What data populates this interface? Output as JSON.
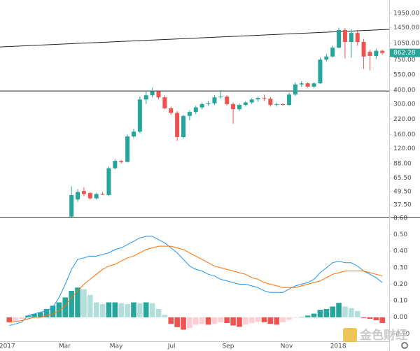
{
  "chart_data": [
    {
      "type": "candlestick",
      "x": [
        0,
        1,
        2,
        3,
        4,
        5,
        6,
        7,
        8,
        9,
        10,
        11,
        12,
        13,
        14,
        15,
        16,
        17,
        18,
        19,
        20,
        21,
        22,
        23,
        24,
        25,
        26,
        27,
        28,
        29,
        30,
        31,
        32,
        33,
        34,
        35,
        36,
        37,
        38,
        39,
        40,
        41,
        42,
        43,
        44,
        45,
        46,
        47,
        48,
        49,
        50,
        51,
        52,
        53,
        54,
        55,
        56,
        57,
        58,
        59,
        60
      ],
      "open": [
        null,
        null,
        null,
        null,
        null,
        null,
        null,
        null,
        null,
        null,
        29.5,
        42,
        50,
        48,
        43,
        47,
        46,
        80,
        93,
        91,
        154,
        170,
        330,
        360,
        390,
        345,
        275,
        250,
        152,
        235,
        255,
        280,
        300,
        305,
        345,
        350,
        300,
        270,
        295,
        310,
        330,
        340,
        335,
        295,
        300,
        295,
        365,
        450,
        460,
        430,
        460,
        750,
        800,
        960,
        1380,
        1080,
        1300,
        1080,
        880,
        810,
        900
      ],
      "high": [
        null,
        null,
        null,
        null,
        null,
        null,
        null,
        null,
        null,
        null,
        55,
        52,
        54,
        49,
        48,
        49,
        83,
        96,
        95,
        160,
        180,
        350,
        395,
        420,
        400,
        360,
        285,
        260,
        240,
        265,
        290,
        310,
        320,
        360,
        400,
        360,
        310,
        305,
        320,
        340,
        350,
        365,
        345,
        310,
        305,
        380,
        470,
        480,
        470,
        470,
        780,
        840,
        1000,
        1450,
        1440,
        1400,
        1350,
        1150,
        920,
        940,
        920
      ],
      "low": [
        null,
        null,
        null,
        null,
        null,
        null,
        null,
        null,
        null,
        null,
        29,
        40,
        45,
        42,
        42,
        46,
        45,
        78,
        88,
        90,
        150,
        165,
        300,
        345,
        330,
        270,
        240,
        140,
        148,
        215,
        245,
        270,
        290,
        295,
        335,
        290,
        200,
        260,
        285,
        300,
        315,
        320,
        285,
        285,
        290,
        290,
        355,
        430,
        420,
        420,
        455,
        720,
        780,
        950,
        770,
        780,
        1000,
        620,
        600,
        760,
        830
      ],
      "close": [
        null,
        null,
        null,
        null,
        null,
        null,
        null,
        null,
        null,
        null,
        46,
        49,
        47,
        43,
        47,
        46.5,
        80,
        93,
        91,
        154,
        170,
        330,
        360,
        390,
        345,
        275,
        250,
        152,
        235,
        255,
        280,
        300,
        305,
        345,
        350,
        300,
        270,
        295,
        310,
        330,
        340,
        335,
        295,
        300,
        295,
        365,
        450,
        460,
        430,
        460,
        750,
        800,
        960,
        1380,
        1080,
        1300,
        1080,
        800,
        810,
        900,
        862.28
      ],
      "up_color": "#26a69a",
      "down_color": "#ef5350",
      "xlim": [
        -1.5,
        61.1
      ],
      "ylim": [
        29,
        2564
      ],
      "log_scale": true,
      "yticks": [
        {
          "value": 37.5,
          "label": "37.50"
        },
        {
          "value": 49.5,
          "label": "49.50"
        },
        {
          "value": 65.5,
          "label": "65.50"
        },
        {
          "value": 88,
          "label": "88.00"
        },
        {
          "value": 120,
          "label": "120.00"
        },
        {
          "value": 160,
          "label": "160.00"
        },
        {
          "value": 220,
          "label": "220.00"
        },
        {
          "value": 300,
          "label": "300.00"
        },
        {
          "value": 400,
          "label": "400.00"
        },
        {
          "value": 550,
          "label": "550.00"
        },
        {
          "value": 750,
          "label": "750.00"
        },
        {
          "value": 1050,
          "label": "1050.00"
        },
        {
          "value": 1450,
          "label": "1450.00"
        },
        {
          "value": 1950,
          "label": "1950.00"
        }
      ],
      "trendlines": [
        {
          "x": [
            -1.5,
            61.1
          ],
          "y": [
            975,
            1400
          ]
        },
        {
          "x": [
            -1.5,
            61.1
          ],
          "y": [
            393,
            393
          ]
        }
      ],
      "trendline_color": "#222222"
    },
    {
      "type": "macd",
      "x": [
        0,
        1,
        2,
        3,
        4,
        5,
        6,
        7,
        8,
        9,
        10,
        11,
        12,
        13,
        14,
        15,
        16,
        17,
        18,
        19,
        20,
        21,
        22,
        23,
        24,
        25,
        26,
        27,
        28,
        29,
        30,
        31,
        32,
        33,
        34,
        35,
        36,
        37,
        38,
        39,
        40,
        41,
        42,
        43,
        44,
        45,
        46,
        47,
        48,
        49,
        50,
        51,
        52,
        53,
        54,
        55,
        56,
        57,
        58,
        59,
        60
      ],
      "xlim": [
        -1.5,
        61.1
      ],
      "xticks": [
        {
          "value": -0.34,
          "label": "2017"
        },
        {
          "value": 8.9,
          "label": "Mar"
        },
        {
          "value": 17.2,
          "label": "May"
        },
        {
          "value": 26.1,
          "label": "Jul"
        },
        {
          "value": 35.2,
          "label": "Sep"
        },
        {
          "value": 44.6,
          "label": "Nov"
        },
        {
          "value": 52.9,
          "label": "2018"
        }
      ],
      "ylim": [
        -0.145,
        0.6
      ],
      "yticks": [
        {
          "value": -0.1,
          "label": "-0.10"
        },
        {
          "value": 0,
          "label": "0.00"
        },
        {
          "value": 0.1,
          "label": "0.10"
        },
        {
          "value": 0.2,
          "label": "0.20"
        },
        {
          "value": 0.3,
          "label": "0.30"
        },
        {
          "value": 0.4,
          "label": "0.40"
        },
        {
          "value": 0.5,
          "label": "0.50"
        },
        {
          "value": 0.6,
          "label": "0.60"
        }
      ],
      "histogram": {
        "values": [
          -0.03,
          -0.02,
          -0.01,
          0.01,
          0.02,
          0.03,
          0.05,
          0.07,
          0.09,
          0.12,
          0.16,
          0.18,
          0.17,
          0.135,
          0.09,
          0.08,
          0.09,
          0.09,
          0.085,
          0.08,
          0.09,
          0.085,
          0.09,
          0.085,
          0.05,
          0.015,
          -0.04,
          -0.06,
          -0.075,
          -0.065,
          -0.045,
          -0.04,
          -0.045,
          -0.04,
          -0.03,
          -0.035,
          -0.05,
          -0.058,
          -0.045,
          -0.035,
          -0.028,
          -0.03,
          -0.04,
          -0.045,
          -0.03,
          -0.015,
          -0.003,
          0.002,
          0.01,
          0.022,
          0.045,
          0.05,
          0.065,
          0.087,
          0.065,
          0.055,
          0.038,
          -0.005,
          -0.01,
          -0.018,
          -0.035
        ],
        "colors": {
          "rising_positive": "#26a69a",
          "falling_positive": "#b2dfdb",
          "falling_negative": "#ef5350",
          "rising_negative": "#ffcdd2"
        }
      },
      "series": [
        {
          "color": "#2196f3",
          "values": [
            -0.05,
            -0.04,
            -0.03,
            0.01,
            0.02,
            0.03,
            0.04,
            0.06,
            0.12,
            0.2,
            0.29,
            0.35,
            0.36,
            0.37,
            0.37,
            0.38,
            0.39,
            0.41,
            0.42,
            0.44,
            0.46,
            0.48,
            0.49,
            0.49,
            0.47,
            0.45,
            0.42,
            0.39,
            0.35,
            0.31,
            0.29,
            0.28,
            0.26,
            0.25,
            0.23,
            0.22,
            0.21,
            0.2,
            0.2,
            0.19,
            0.18,
            0.16,
            0.15,
            0.15,
            0.15,
            0.17,
            0.19,
            0.2,
            0.21,
            0.23,
            0.27,
            0.3,
            0.33,
            0.34,
            0.33,
            0.33,
            0.31,
            0.28,
            0.26,
            0.24,
            0.21
          ]
        },
        {
          "color": "#ff6d00",
          "values": [
            -0.03,
            -0.025,
            -0.02,
            -0.01,
            0,
            0,
            0.01,
            0.02,
            0.04,
            0.07,
            0.12,
            0.16,
            0.2,
            0.23,
            0.26,
            0.29,
            0.31,
            0.32,
            0.34,
            0.36,
            0.37,
            0.39,
            0.41,
            0.42,
            0.43,
            0.43,
            0.43,
            0.42,
            0.41,
            0.39,
            0.37,
            0.35,
            0.33,
            0.31,
            0.3,
            0.29,
            0.28,
            0.27,
            0.26,
            0.24,
            0.23,
            0.21,
            0.2,
            0.19,
            0.18,
            0.18,
            0.18,
            0.19,
            0.2,
            0.21,
            0.22,
            0.24,
            0.26,
            0.27,
            0.28,
            0.28,
            0.28,
            0.28,
            0.27,
            0.26,
            0.25
          ]
        }
      ],
      "watermark": "金色财经"
    }
  ]
}
